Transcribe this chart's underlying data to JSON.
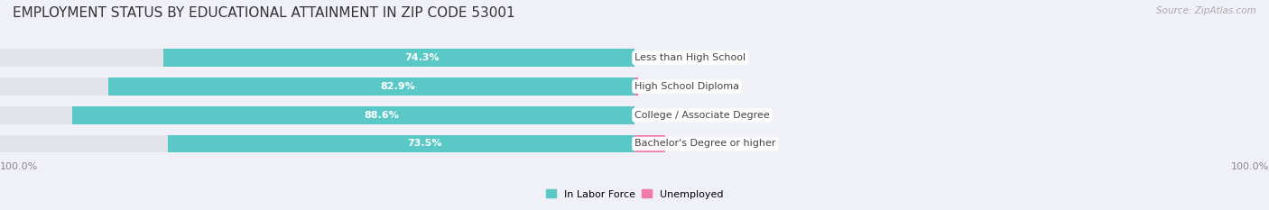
{
  "title": "EMPLOYMENT STATUS BY EDUCATIONAL ATTAINMENT IN ZIP CODE 53001",
  "source": "Source: ZipAtlas.com",
  "categories": [
    "Less than High School",
    "High School Diploma",
    "College / Associate Degree",
    "Bachelor's Degree or higher"
  ],
  "labor_force_values": [
    74.3,
    82.9,
    88.6,
    73.5
  ],
  "unemployed_values": [
    0.0,
    0.6,
    0.0,
    4.8
  ],
  "labor_force_color": "#5bc8c8",
  "unemployed_color": "#f07aaa",
  "bar_bg_color": "#e2e2ea",
  "fig_bg_color": "#f0f0f8",
  "bar_height": 0.62,
  "total_width": 100,
  "x_left_label": "100.0%",
  "x_right_label": "100.0%",
  "legend_labor_force": "In Labor Force",
  "legend_unemployed": "Unemployed",
  "title_fontsize": 11,
  "bar_label_fontsize": 8,
  "category_fontsize": 8,
  "pct_fontsize": 8,
  "axis_label_fontsize": 8
}
